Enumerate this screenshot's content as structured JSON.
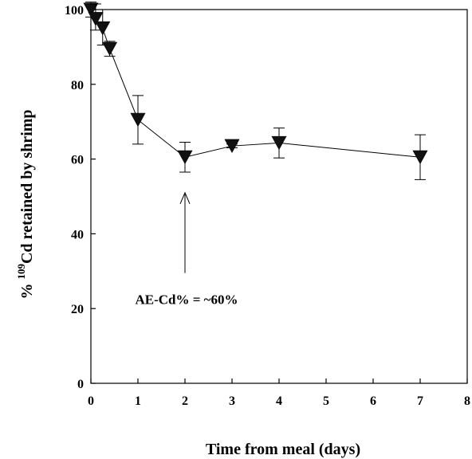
{
  "chart_data": {
    "type": "scatter",
    "xlabel": "Time from meal (days)",
    "ylabel": {
      "prefix": "% ",
      "superscript": "109",
      "suffix": "Cd retained by shrimp"
    },
    "xlim": [
      0,
      8
    ],
    "ylim": [
      0,
      100
    ],
    "xticks": [
      0,
      1,
      2,
      3,
      4,
      5,
      6,
      7,
      8
    ],
    "yticks": [
      0,
      20,
      40,
      60,
      80,
      100
    ],
    "grid": false,
    "marker": "inverted-triangle",
    "series": [
      {
        "points": [
          {
            "x": 0.0,
            "y": 100,
            "err_up": 2.0,
            "err_down": 2.0
          },
          {
            "x": 0.1,
            "y": 97.5,
            "err_up": 4.0,
            "err_down": 3.0
          },
          {
            "x": 0.25,
            "y": 95,
            "err_up": 5.0,
            "err_down": 4.5
          },
          {
            "x": 0.4,
            "y": 89.5,
            "err_up": 2.0,
            "err_down": 2.0
          },
          {
            "x": 1.0,
            "y": 70.5,
            "err_up": 6.5,
            "err_down": 6.5
          },
          {
            "x": 2.0,
            "y": 60.5,
            "err_up": 4.0,
            "err_down": 4.0
          },
          {
            "x": 3.0,
            "y": 63.5,
            "err_up": 0.5,
            "err_down": 0.5
          },
          {
            "x": 4.0,
            "y": 64.3,
            "err_up": 4.0,
            "err_down": 4.0
          },
          {
            "x": 7.0,
            "y": 60.5,
            "err_up": 6.0,
            "err_down": 6.0
          }
        ]
      }
    ],
    "annotation": {
      "text": "AE-Cd% = ~60%",
      "arrow_x": 2.0,
      "arrow_tip_y": 51,
      "arrow_tail_y": 29.5,
      "text_y": 22.5
    }
  }
}
